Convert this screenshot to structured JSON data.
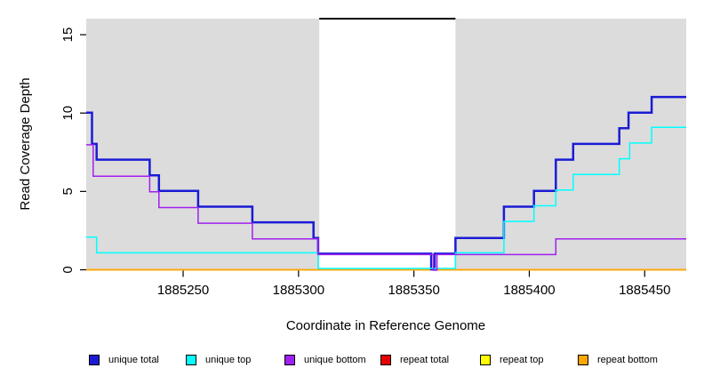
{
  "figure": {
    "background": "#ffffff",
    "panel_background": "#dcdcdc"
  },
  "chart_data": {
    "type": "line",
    "subtype": "step",
    "title": "",
    "xlabel": "Coordinate in Reference Genome",
    "ylabel": "Read Coverage Depth",
    "xlim": [
      1885208,
      1885468
    ],
    "ylim": [
      0,
      16
    ],
    "x_ticks": [
      1885250,
      1885300,
      1885350,
      1885400,
      1885450
    ],
    "y_ticks": [
      0,
      5,
      10,
      15
    ],
    "grid": false,
    "legend_position": "bottom",
    "panel_color": "#dcdcdc",
    "highlight_region": {
      "x0": 1885309,
      "x1": 1885368,
      "fill": "#ffffff",
      "top_marker_color": "#000000"
    },
    "series": [
      {
        "name": "unique total",
        "color": "#1b1bd6",
        "line_width": 2.5,
        "step_points": [
          [
            1885208,
            10
          ],
          [
            1885210.5,
            8
          ],
          [
            1885212.5,
            7
          ],
          [
            1885235.5,
            6
          ],
          [
            1885239.5,
            5
          ],
          [
            1885256.5,
            4
          ],
          [
            1885280,
            3
          ],
          [
            1885306.5,
            2
          ],
          [
            1885308.5,
            1
          ],
          [
            1885357.5,
            0
          ],
          [
            1885359,
            1
          ],
          [
            1885368,
            2
          ],
          [
            1885389,
            4
          ],
          [
            1885402,
            5
          ],
          [
            1885411.5,
            7
          ],
          [
            1885419,
            8
          ],
          [
            1885439,
            9
          ],
          [
            1885443,
            10
          ],
          [
            1885453,
            11
          ],
          [
            1885468,
            11
          ]
        ]
      },
      {
        "name": "unique top",
        "color": "#00ffff",
        "line_width": 1.5,
        "step_points": [
          [
            1885208,
            2
          ],
          [
            1885212.5,
            1
          ],
          [
            1885308.5,
            0
          ],
          [
            1885368,
            1
          ],
          [
            1885389,
            3
          ],
          [
            1885402,
            4
          ],
          [
            1885411.5,
            5
          ],
          [
            1885419,
            6
          ],
          [
            1885439,
            7
          ],
          [
            1885443.5,
            8
          ],
          [
            1885453,
            9
          ],
          [
            1885468,
            9
          ]
        ]
      },
      {
        "name": "unique bottom",
        "color": "#a020f0",
        "line_width": 1.5,
        "step_points": [
          [
            1885208,
            8
          ],
          [
            1885211,
            6
          ],
          [
            1885235.5,
            5
          ],
          [
            1885239.5,
            4
          ],
          [
            1885256.5,
            3
          ],
          [
            1885280,
            2
          ],
          [
            1885308.5,
            1
          ],
          [
            1885358.5,
            0
          ],
          [
            1885360,
            1
          ],
          [
            1885411.5,
            2
          ],
          [
            1885468,
            2
          ]
        ]
      },
      {
        "name": "repeat total",
        "color": "#e60000",
        "line_width": 1.5,
        "step_points": [
          [
            1885208,
            0
          ],
          [
            1885468,
            0
          ]
        ]
      },
      {
        "name": "repeat top",
        "color": "#ffff00",
        "line_width": 1.5,
        "step_points": [
          [
            1885208,
            0
          ],
          [
            1885468,
            0
          ]
        ]
      },
      {
        "name": "repeat bottom",
        "color": "#ffa500",
        "line_width": 1.5,
        "step_points": [
          [
            1885208,
            0
          ],
          [
            1885468,
            0
          ]
        ]
      }
    ]
  },
  "legend": {
    "items": [
      {
        "label": "unique total",
        "color": "#1b1bd6"
      },
      {
        "label": "unique top",
        "color": "#00ffff"
      },
      {
        "label": "unique bottom",
        "color": "#a020f0"
      },
      {
        "label": "repeat total",
        "color": "#e60000"
      },
      {
        "label": "repeat top",
        "color": "#ffff00"
      },
      {
        "label": "repeat bottom",
        "color": "#ffa500"
      }
    ]
  }
}
